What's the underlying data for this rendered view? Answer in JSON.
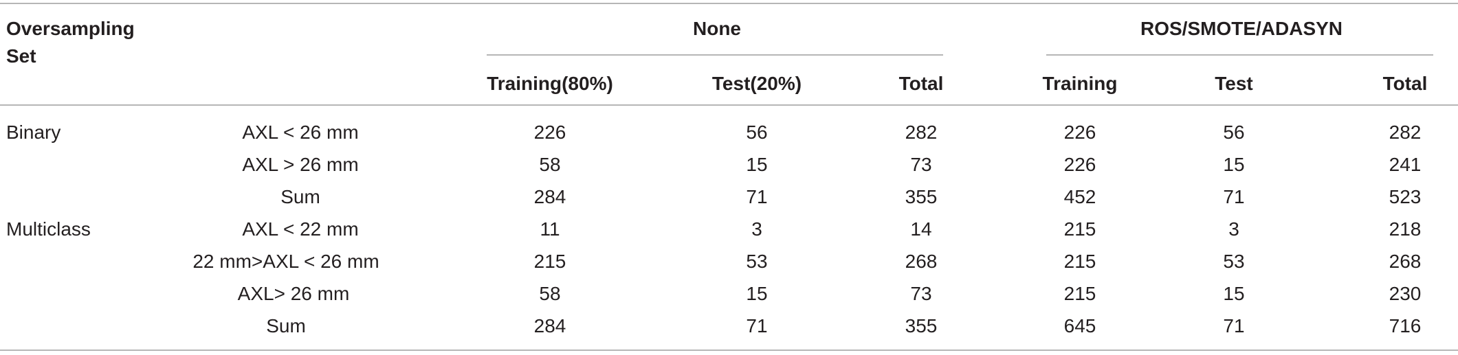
{
  "table": {
    "header": {
      "col0_line1": "Oversampling",
      "col0_line2": "Set",
      "group_none": "None",
      "group_over": "ROS/SMOTE/ADASYN",
      "none_training": "Training(80%)",
      "none_test": "Test(20%)",
      "none_total": "Total",
      "over_training": "Training",
      "over_test": "Test",
      "over_total": "Total"
    },
    "rows": [
      {
        "set": "Binary",
        "condition": "AXL  <  26 mm",
        "values": [
          "226",
          "56",
          "282",
          "226",
          "56",
          "282"
        ]
      },
      {
        "set": "",
        "condition": "AXL > 26 mm",
        "values": [
          "58",
          "15",
          "73",
          "226",
          "15",
          "241"
        ]
      },
      {
        "set": "",
        "condition": "Sum",
        "values": [
          "284",
          "71",
          "355",
          "452",
          "71",
          "523"
        ]
      },
      {
        "set": "Multiclass",
        "condition": "AXL  < 22 mm",
        "values": [
          "11",
          "3",
          "14",
          "215",
          "3",
          "218"
        ]
      },
      {
        "set": "",
        "condition": "22 mm>AXL < 26 mm",
        "values": [
          "215",
          "53",
          "268",
          "215",
          "53",
          "268"
        ]
      },
      {
        "set": "",
        "condition": "AXL> 26 mm",
        "values": [
          "58",
          "15",
          "73",
          "215",
          "15",
          "230"
        ]
      },
      {
        "set": "",
        "condition": "Sum",
        "values": [
          "284",
          "71",
          "355",
          "645",
          "71",
          "716"
        ]
      }
    ]
  }
}
